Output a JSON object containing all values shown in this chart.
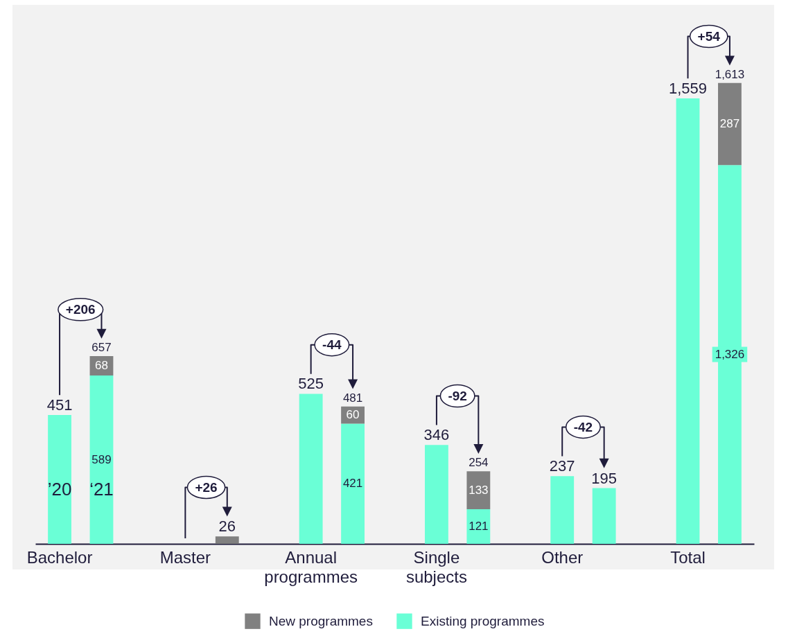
{
  "chart_data": {
    "type": "bar",
    "stacked": true,
    "legend": "bottom",
    "categories": [
      "Bachelor",
      null,
      "Master",
      null,
      "Annual programmes",
      null,
      "Single subjects",
      null,
      "Other",
      null,
      "Total",
      null
    ],
    "series": [
      {
        "name": "Existing programmes",
        "color": "#6affd6",
        "values": [
          451,
          589,
          null,
          null,
          525,
          421,
          346,
          121,
          237,
          195,
          1559,
          1326
        ],
        "value_labels": [
          "451",
          "589",
          null,
          null,
          "525",
          "421",
          "346",
          "121",
          "237",
          "195",
          "1,559",
          "1,326"
        ]
      },
      {
        "name": "New programmes",
        "color": "#808080",
        "values": [
          null,
          68,
          null,
          26,
          null,
          60,
          null,
          133,
          null,
          null,
          null,
          287
        ],
        "value_labels": [
          null,
          "68",
          null,
          "26",
          null,
          "60",
          null,
          "133",
          null,
          null,
          null,
          "287"
        ]
      }
    ],
    "totals": [
      null,
      "657",
      null,
      null,
      null,
      "481",
      null,
      "254",
      null,
      null,
      null,
      "1,613"
    ],
    "annotations": [
      "’20",
      "‘21",
      "+206",
      "+26",
      "-44",
      "-92",
      "-42",
      "+54"
    ]
  }
}
